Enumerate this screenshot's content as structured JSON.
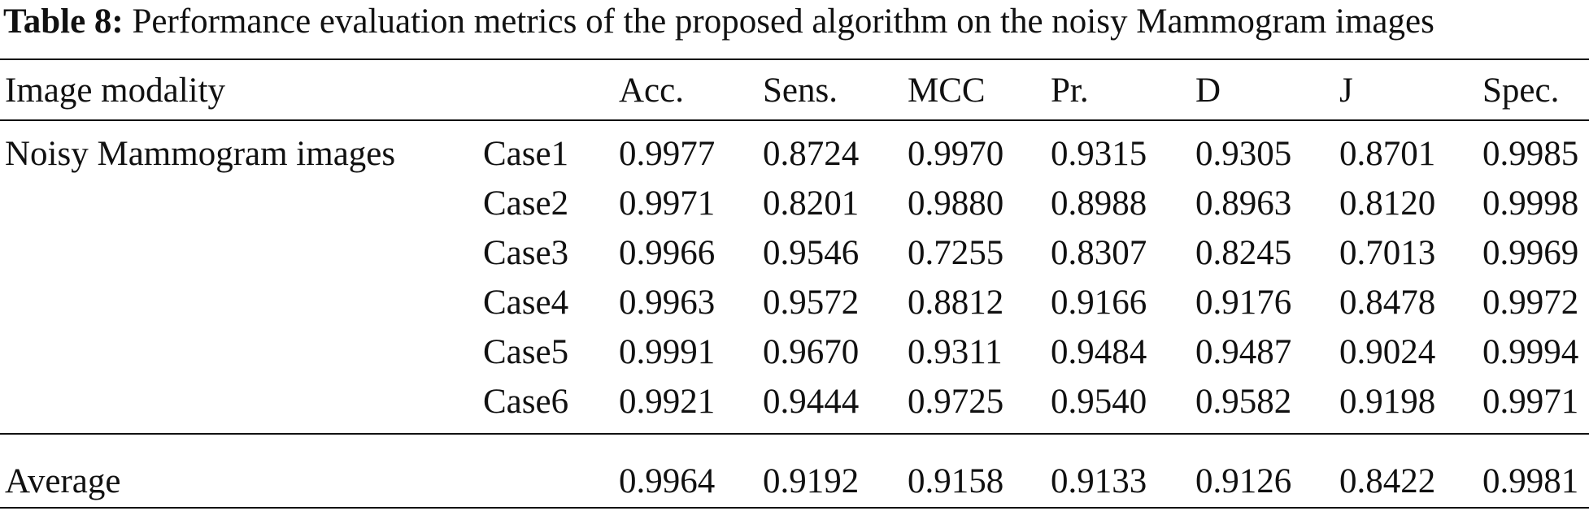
{
  "caption": {
    "label": "Table 8:",
    "text": "Performance evaluation metrics of the proposed algorithm on the noisy Mammogram images"
  },
  "table": {
    "header": {
      "modality": "Image modality",
      "metrics": [
        "Acc.",
        "Sens.",
        "MCC",
        "Pr.",
        "D",
        "J",
        "Spec."
      ]
    },
    "group": "Noisy Mammogram images",
    "rows": [
      {
        "case": "Case1",
        "values": [
          "0.9977",
          "0.8724",
          "0.9970",
          "0.9315",
          "0.9305",
          "0.8701",
          "0.9985"
        ]
      },
      {
        "case": "Case2",
        "values": [
          "0.9971",
          "0.8201",
          "0.9880",
          "0.8988",
          "0.8963",
          "0.8120",
          "0.9998"
        ]
      },
      {
        "case": "Case3",
        "values": [
          "0.9966",
          "0.9546",
          "0.7255",
          "0.8307",
          "0.8245",
          "0.7013",
          "0.9969"
        ]
      },
      {
        "case": "Case4",
        "values": [
          "0.9963",
          "0.9572",
          "0.8812",
          "0.9166",
          "0.9176",
          "0.8478",
          "0.9972"
        ]
      },
      {
        "case": "Case5",
        "values": [
          "0.9991",
          "0.9670",
          "0.9311",
          "0.9484",
          "0.9487",
          "0.9024",
          "0.9994"
        ]
      },
      {
        "case": "Case6",
        "values": [
          "0.9921",
          "0.9444",
          "0.9725",
          "0.9540",
          "0.9582",
          "0.9198",
          "0.9971"
        ]
      }
    ],
    "average": {
      "label": "Average",
      "values": [
        "0.9964",
        "0.9192",
        "0.9158",
        "0.9133",
        "0.9126",
        "0.8422",
        "0.9981"
      ]
    }
  }
}
